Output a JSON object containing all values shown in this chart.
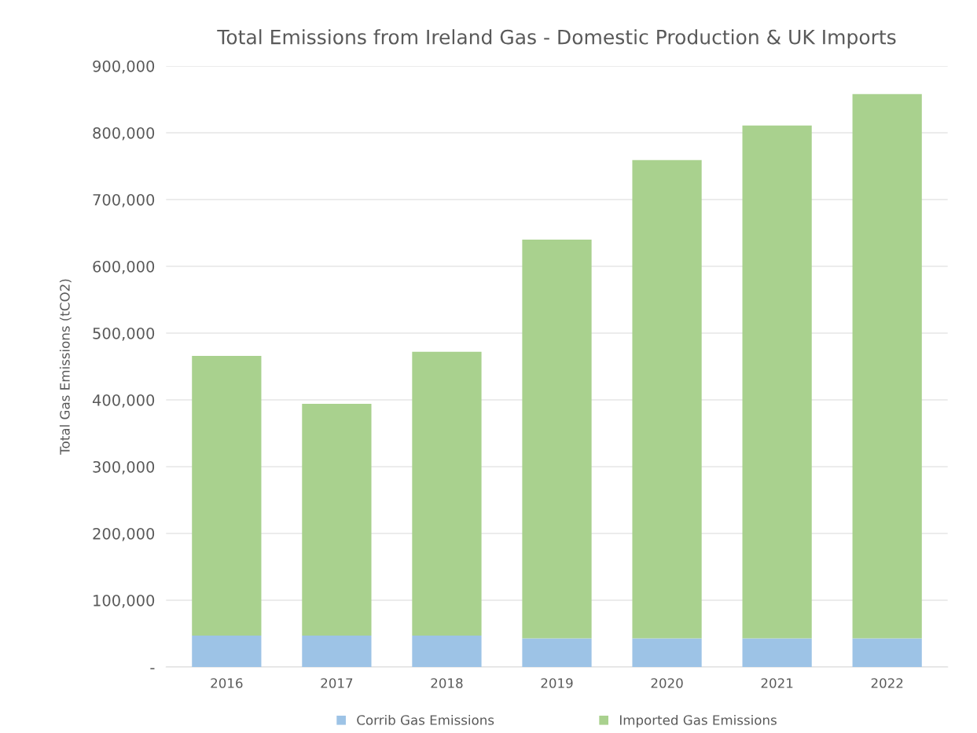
{
  "chart_data": {
    "type": "bar",
    "title": "Total Emissions from Ireland Gas - Domestic Production & UK Imports",
    "ylabel": "Total Gas Emissions (tCO2)",
    "categories": [
      "2016",
      "2017",
      "2018",
      "2019",
      "2020",
      "2021",
      "2022"
    ],
    "stacked": true,
    "series": [
      {
        "name": "Corrib Gas Emissions",
        "color": "#9dc3e6",
        "values": [
          47000,
          47000,
          47000,
          43000,
          43000,
          43000,
          43000
        ]
      },
      {
        "name": "Imported Gas Emissions",
        "color": "#a9d18e",
        "values": [
          419000,
          347000,
          425000,
          597000,
          716000,
          768000,
          815000
        ]
      }
    ],
    "ylim": [
      0,
      900000
    ],
    "yticks": [
      {
        "value": 0,
        "label": "-"
      },
      {
        "value": 100000,
        "label": "100,000"
      },
      {
        "value": 200000,
        "label": "200,000"
      },
      {
        "value": 300000,
        "label": "300,000"
      },
      {
        "value": 400000,
        "label": "400,000"
      },
      {
        "value": 500000,
        "label": "500,000"
      },
      {
        "value": 600000,
        "label": "600,000"
      },
      {
        "value": 700000,
        "label": "700,000"
      },
      {
        "value": 800000,
        "label": "800,000"
      },
      {
        "value": 900000,
        "label": "900,000"
      }
    ],
    "grid": "y",
    "legend": "bottom"
  }
}
